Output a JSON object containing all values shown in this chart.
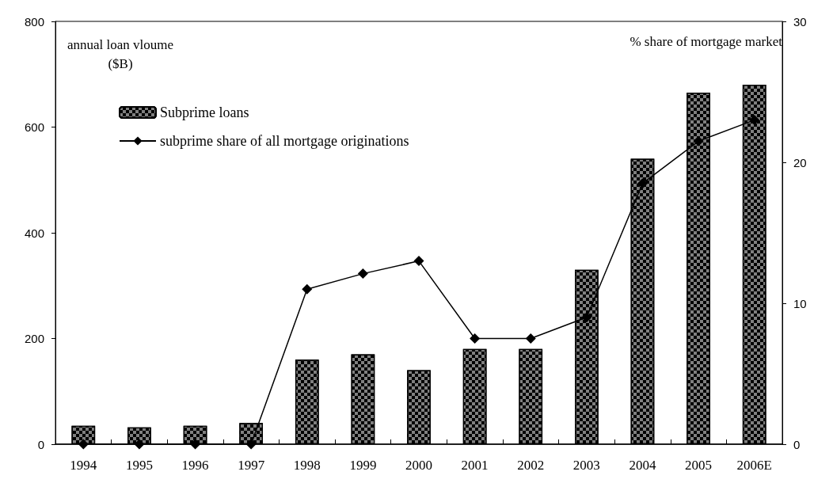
{
  "chart_data": {
    "type": "bar",
    "ylabel": "annual loan vloume\n($B)",
    "y2label": "% share of mortgage market",
    "categories": [
      "1994",
      "1995",
      "1996",
      "1997",
      "1998",
      "1999",
      "2000",
      "2001",
      "2002",
      "2003",
      "2004",
      "2005",
      "2006E"
    ],
    "series": [
      {
        "name": "Subprime loans",
        "color": "#808080",
        "values": [
          35,
          32,
          35,
          40,
          160,
          170,
          140,
          180,
          180,
          330,
          540,
          665,
          680
        ]
      },
      {
        "name": "subprime share of all mortgage originations",
        "type": "line",
        "axis": "y2",
        "color": "#000000",
        "marker": "diamond",
        "values": [
          0,
          0,
          0,
          0,
          11.0,
          12.1,
          13.0,
          7.5,
          7.5,
          9.0,
          18.5,
          21.5,
          23.0
        ]
      }
    ],
    "ylim": [
      0,
      800
    ],
    "yticks": [
      0,
      200,
      400,
      600,
      800
    ],
    "y2lim": [
      0,
      30
    ],
    "y2ticks": [
      0,
      10,
      20,
      30
    ],
    "grid": false,
    "legend": "top left"
  }
}
